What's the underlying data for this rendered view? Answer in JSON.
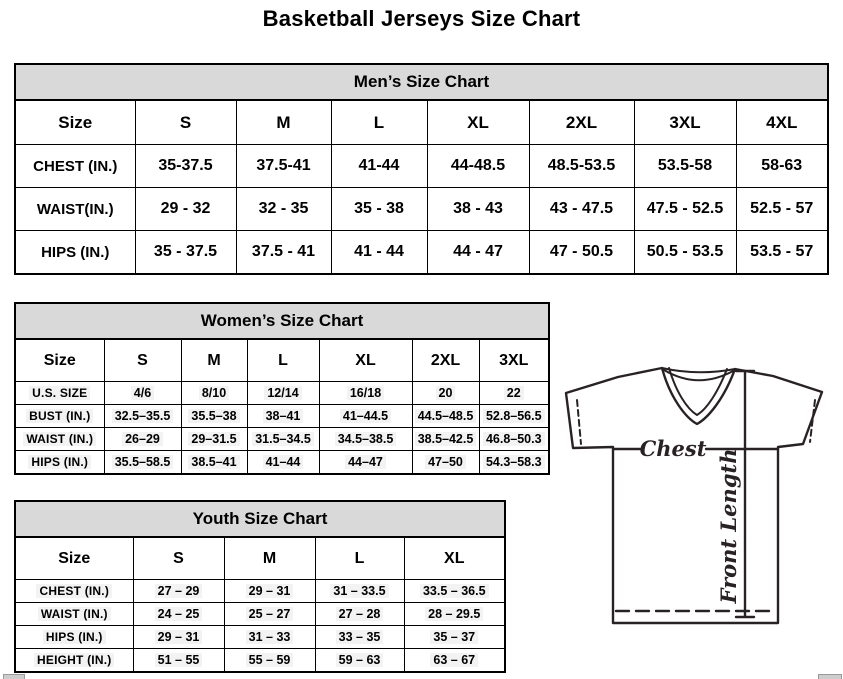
{
  "page": {
    "title": "Basketball Jerseys Size Chart"
  },
  "mens": {
    "title": "Men’s Size Chart",
    "columns": [
      "Size",
      "S",
      "M",
      "L",
      "XL",
      "2XL",
      "3XL",
      "4XL"
    ],
    "rows": [
      {
        "label": "CHEST (IN.)",
        "values": [
          "35-37.5",
          "37.5-41",
          "41-44",
          "44-48.5",
          "48.5-53.5",
          "53.5-58",
          "58-63"
        ]
      },
      {
        "label": "WAIST(IN.)",
        "values": [
          "29 - 32",
          "32 - 35",
          "35 - 38",
          "38 - 43",
          "43 - 47.5",
          "47.5 - 52.5",
          "52.5 - 57"
        ]
      },
      {
        "label": "HIPS (IN.)",
        "values": [
          "35 - 37.5",
          "37.5 - 41",
          "41 - 44",
          "44 - 47",
          "47 - 50.5",
          "50.5 - 53.5",
          "53.5 - 57"
        ]
      }
    ]
  },
  "womens": {
    "title": "Women’s Size Chart",
    "columns": [
      "Size",
      "S",
      "M",
      "L",
      "XL",
      "2XL",
      "3XL"
    ],
    "rows": [
      {
        "label": "U.S. SIZE",
        "values": [
          "4/6",
          "8/10",
          "12/14",
          "16/18",
          "20",
          "22"
        ]
      },
      {
        "label": "BUST (IN.)",
        "values": [
          "32.5–35.5",
          "35.5–38",
          "38–41",
          "41–44.5",
          "44.5–48.5",
          "52.8–56.5"
        ]
      },
      {
        "label": "WAIST (IN.)",
        "values": [
          "26–29",
          "29–31.5",
          "31.5–34.5",
          "34.5–38.5",
          "38.5–42.5",
          "46.8–50.3"
        ]
      },
      {
        "label": "HIPS (IN.)",
        "values": [
          "35.5–58.5",
          "38.5–41",
          "41–44",
          "44–47",
          "47–50",
          "54.3–58.3"
        ]
      }
    ]
  },
  "youth": {
    "title": "Youth Size Chart",
    "columns": [
      "Size",
      "S",
      "M",
      "L",
      "XL"
    ],
    "rows": [
      {
        "label": "CHEST (IN.)",
        "values": [
          "27 – 29",
          "29 – 31",
          "31 – 33.5",
          "33.5 – 36.5"
        ]
      },
      {
        "label": "WAIST (IN.)",
        "values": [
          "24 – 25",
          "25 – 27",
          "27 – 28",
          "28 – 29.5"
        ]
      },
      {
        "label": "HIPS (IN.)",
        "values": [
          "29 – 31",
          "31 – 33",
          "33 – 35",
          "35 – 37"
        ]
      },
      {
        "label": "HEIGHT (IN.)",
        "values": [
          "51 – 55",
          "55 – 59",
          "59 – 63",
          "63 – 67"
        ]
      }
    ]
  },
  "diagram": {
    "chest_label": "Chest",
    "front_length_label": "Front Length"
  },
  "colors": {
    "table_header_fill": "#d9d9d9",
    "table_border": "#000000",
    "diagram_stroke": "#292224",
    "background": "#ffffff"
  }
}
